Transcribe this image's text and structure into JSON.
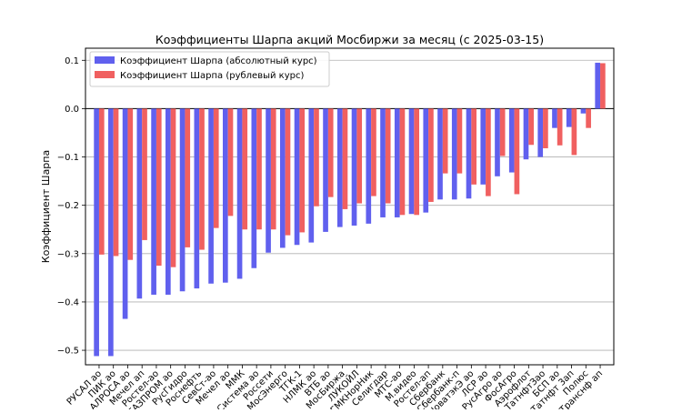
{
  "chart_data": {
    "type": "bar",
    "title": "Коэффициенты Шарпа акций Мосбиржи за месяц (с 2025-03-15)",
    "xlabel": "",
    "ylabel": "Коэффициент Шарпа",
    "ylim": [
      -0.53,
      0.125
    ],
    "yticks": [
      0.1,
      0.0,
      -0.1,
      -0.2,
      -0.3,
      -0.4,
      -0.5
    ],
    "ytick_labels": [
      "0.1",
      "0.0",
      "−0.1",
      "−0.2",
      "−0.3",
      "−0.4",
      "−0.5"
    ],
    "grid": "horizontal",
    "legend_position": "top-left",
    "categories": [
      "РУСАЛ ао",
      "ПИК ао",
      "АЛРОСА ао",
      "Мечел ап",
      "Ростел-ао",
      "ГАЗПРОМ ао",
      "РусГидро",
      "Роснефть",
      "СевСт-ао",
      "Мечел ао",
      "ММК",
      "Система ао",
      "Россети",
      "МосЭнерго",
      "ТГК-1",
      "НЛМК ао",
      "ВТБ ао",
      "МосБиржа",
      "ЛУКОЙЛ",
      "ГМКНорНик",
      "Селигдар",
      "МТС-ао",
      "М.видео",
      "Ростел-ап",
      "Сбербанк",
      "Сбербанк-п",
      "НоватэкЭ ао",
      "ЛСР ао",
      "РусАгро ао",
      "ФосАгро",
      "Аэрофлот",
      "ТатнфтЗао",
      "БСП ао",
      "Татнфт 3ап",
      "Полюс",
      "Транснф ап"
    ],
    "series": [
      {
        "name": "Коэффициент Шарпа (абсолютный курс)",
        "color": "#6060ee",
        "values": [
          -0.512,
          -0.512,
          -0.435,
          -0.393,
          -0.385,
          -0.385,
          -0.378,
          -0.372,
          -0.362,
          -0.36,
          -0.352,
          -0.33,
          -0.298,
          -0.288,
          -0.282,
          -0.277,
          -0.255,
          -0.245,
          -0.242,
          -0.238,
          -0.225,
          -0.225,
          -0.218,
          -0.215,
          -0.188,
          -0.188,
          -0.186,
          -0.157,
          -0.14,
          -0.132,
          -0.105,
          -0.1,
          -0.04,
          -0.038,
          -0.01,
          0.095
        ]
      },
      {
        "name": "Коэффициент Шарпа (рублевый курс)",
        "color": "#f06060",
        "values": [
          -0.302,
          -0.305,
          -0.313,
          -0.272,
          -0.325,
          -0.328,
          -0.287,
          -0.292,
          -0.247,
          -0.222,
          -0.25,
          -0.25,
          -0.25,
          -0.262,
          -0.256,
          -0.202,
          -0.183,
          -0.208,
          -0.196,
          -0.181,
          -0.196,
          -0.22,
          -0.22,
          -0.193,
          -0.134,
          -0.134,
          -0.157,
          -0.181,
          -0.098,
          -0.177,
          -0.075,
          -0.082,
          -0.076,
          -0.096,
          -0.04,
          0.094
        ]
      }
    ]
  }
}
